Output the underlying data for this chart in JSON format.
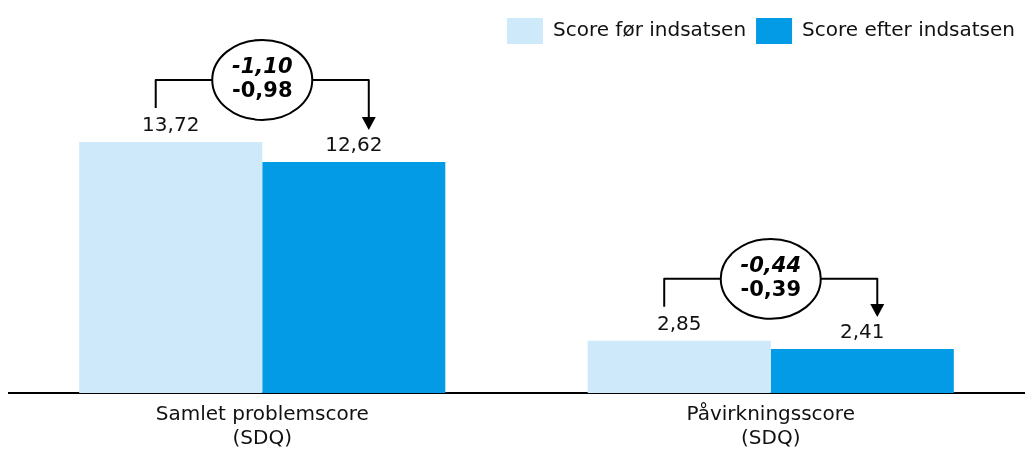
{
  "chart_data": {
    "type": "bar",
    "categories": [
      "Samlet problemscore\n(SDQ)",
      "Påvirkningsscore\n(SDQ)"
    ],
    "series": [
      {
        "name": "Score før indsatsen",
        "color": "#cde9fa",
        "values": [
          13.72,
          2.85
        ],
        "value_labels": [
          "13,72",
          "2,85"
        ]
      },
      {
        "name": "Score efter indsatsen",
        "color": "#039be6",
        "values": [
          12.62,
          2.41
        ],
        "value_labels": [
          "12,62",
          "2,41"
        ]
      }
    ],
    "annotations": [
      "-1,10\n-0,98",
      "-0,44\n-0,39"
    ],
    "legend": "top right",
    "grid": false,
    "tick_labels": "x"
  }
}
